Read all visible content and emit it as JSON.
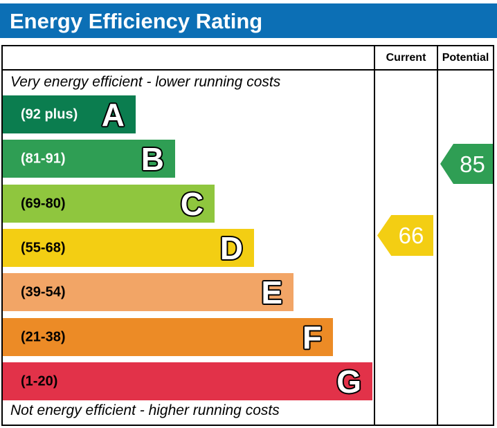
{
  "title": "Energy Efficiency Rating",
  "colors": {
    "header_bg": "#0c6fb5",
    "border": "#000000"
  },
  "columns": {
    "current": "Current",
    "potential": "Potential"
  },
  "captions": {
    "top": "Very energy efficient - lower running costs",
    "bottom": "Not energy efficient - higher running costs"
  },
  "bands": [
    {
      "letter": "A",
      "range": "(92 plus)",
      "color": "#0b7d4f",
      "label_color": "#ffffff"
    },
    {
      "letter": "B",
      "range": "(81-91)",
      "color": "#2f9e54",
      "label_color": "#ffffff"
    },
    {
      "letter": "C",
      "range": "(69-80)",
      "color": "#8fc63e",
      "label_color": "#000000"
    },
    {
      "letter": "D",
      "range": "(55-68)",
      "color": "#f3ce13",
      "label_color": "#000000"
    },
    {
      "letter": "E",
      "range": "(39-54)",
      "color": "#f2a566",
      "label_color": "#000000"
    },
    {
      "letter": "F",
      "range": "(21-38)",
      "color": "#ec8b26",
      "label_color": "#000000"
    },
    {
      "letter": "G",
      "range": "(1-20)",
      "color": "#e23249",
      "label_color": "#000000"
    }
  ],
  "ratings": {
    "current": {
      "value": "66",
      "band": "D",
      "color": "#f3ce13"
    },
    "potential": {
      "value": "85",
      "band": "B",
      "color": "#2f9e54"
    }
  },
  "chart_data": {
    "type": "bar",
    "title": "Energy Efficiency Rating",
    "categories": [
      "A",
      "B",
      "C",
      "D",
      "E",
      "F",
      "G"
    ],
    "band_ranges": [
      "92 plus",
      "81-91",
      "69-80",
      "55-68",
      "39-54",
      "21-38",
      "1-20"
    ],
    "band_colors": [
      "#0b7d4f",
      "#2f9e54",
      "#8fc63e",
      "#f3ce13",
      "#f2a566",
      "#ec8b26",
      "#e23249"
    ],
    "columns": [
      "Current",
      "Potential"
    ],
    "values": {
      "current": 66,
      "potential": 85
    },
    "current_band": "D",
    "potential_band": "B",
    "annotations": [
      "Very energy efficient - lower running costs",
      "Not energy efficient - higher running costs"
    ]
  }
}
